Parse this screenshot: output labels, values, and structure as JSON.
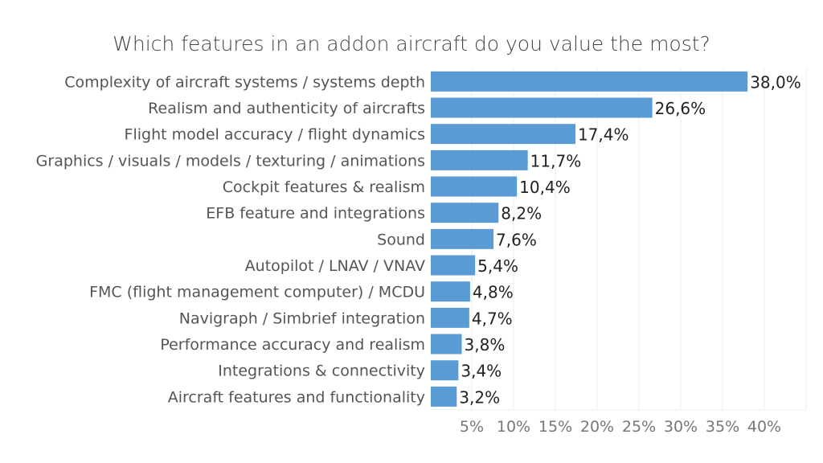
{
  "chart_data": {
    "type": "bar",
    "orientation": "horizontal",
    "title": "Which features in an addon aircraft do you value the most?",
    "categories": [
      "Complexity of aircraft systems / systems depth",
      "Realism and authenticity of aircrafts",
      "Flight model accuracy / flight dynamics",
      "Graphics / visuals / models / texturing / animations",
      "Cockpit features & realism",
      "EFB feature and integrations",
      "Sound",
      "Autopilot / LNAV / VNAV",
      "FMC (flight management computer) / MCDU",
      "Navigraph / Simbrief integration",
      "Performance accuracy and realism",
      "Integrations & connectivity",
      "Aircraft features and functionality"
    ],
    "values": [
      38.0,
      26.6,
      17.4,
      11.7,
      10.4,
      8.2,
      7.6,
      5.4,
      4.8,
      4.7,
      3.8,
      3.4,
      3.2
    ],
    "value_labels": [
      "38,0%",
      "26,6%",
      "17,4%",
      "11,7%",
      "10,4%",
      "8,2%",
      "7,6%",
      "5,4%",
      "4,8%",
      "4,7%",
      "3,8%",
      "3,4%",
      "3,2%"
    ],
    "x_ticks": [
      5,
      10,
      15,
      20,
      25,
      30,
      35,
      40
    ],
    "x_tick_labels": [
      "5%",
      "10%",
      "15%",
      "20%",
      "25%",
      "30%",
      "35%",
      "40%"
    ],
    "xlim": [
      0,
      45
    ],
    "grid": "vertical",
    "bar_color": "#5b9bd5",
    "xlabel": "",
    "ylabel": ""
  }
}
